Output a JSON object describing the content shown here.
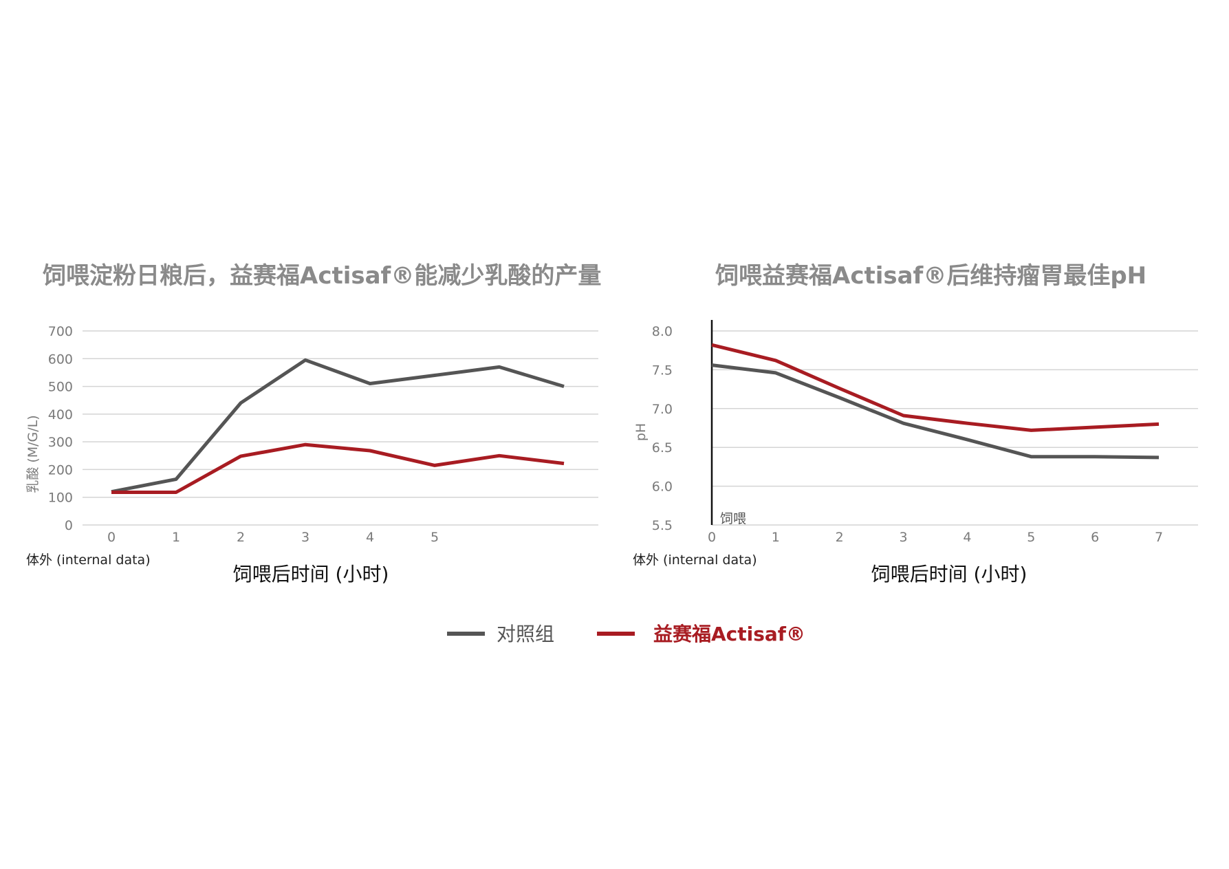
{
  "colors": {
    "control": "#555555",
    "actisaf": "#a81c22",
    "title": "#8a8a8a",
    "grid": "#d4d4d4"
  },
  "legend": {
    "control_label": "对照组",
    "actisaf_label": "益赛福Actisaf®"
  },
  "chart_data": [
    {
      "type": "line",
      "title": "饲喂淀粉日粮后，益赛福Actisaf®能减少乳酸的产量",
      "ylabel": "乳酸 (M/G/L)",
      "xlabel": "饲喂后时间 (小时)",
      "source": "体外 (internal data)",
      "ylim": [
        0,
        700
      ],
      "yticks": [
        "0",
        "100",
        "200",
        "300",
        "400",
        "500",
        "600",
        "700"
      ],
      "xticks": [
        "0",
        "1",
        "2",
        "3",
        "4",
        "5"
      ],
      "x": [
        0,
        1,
        2,
        3,
        4,
        5,
        6,
        7
      ],
      "xlim": [
        0,
        7
      ],
      "grid": true,
      "series": [
        {
          "key": "control",
          "values": [
            120,
            165,
            440,
            595,
            510,
            540,
            570,
            500
          ]
        },
        {
          "key": "actisaf",
          "values": [
            118,
            118,
            248,
            290,
            268,
            215,
            250,
            222
          ]
        }
      ]
    },
    {
      "type": "line",
      "title": "饲喂益赛福Actisaf®后维持瘤胃最佳pH",
      "ylabel": "pH",
      "xlabel": "饲喂后时间 (小时)",
      "source": "体外 (internal data)",
      "annotation": "饲喂",
      "ylim": [
        5.5,
        8.0
      ],
      "yticks": [
        "5.5",
        "6.0",
        "6.5",
        "7.0",
        "7.5",
        "8.0"
      ],
      "xticks": [
        "0",
        "1",
        "2",
        "3",
        "4",
        "5",
        "6",
        "7"
      ],
      "x": [
        0,
        1,
        2,
        3,
        4,
        5,
        6,
        7
      ],
      "xlim": [
        0,
        7
      ],
      "grid": true,
      "series": [
        {
          "key": "control",
          "values": [
            7.56,
            7.46,
            7.14,
            6.81,
            6.6,
            6.38,
            6.38,
            6.37
          ]
        },
        {
          "key": "actisaf",
          "values": [
            7.82,
            7.62,
            7.26,
            6.91,
            6.81,
            6.72,
            6.76,
            6.8
          ]
        }
      ]
    }
  ]
}
